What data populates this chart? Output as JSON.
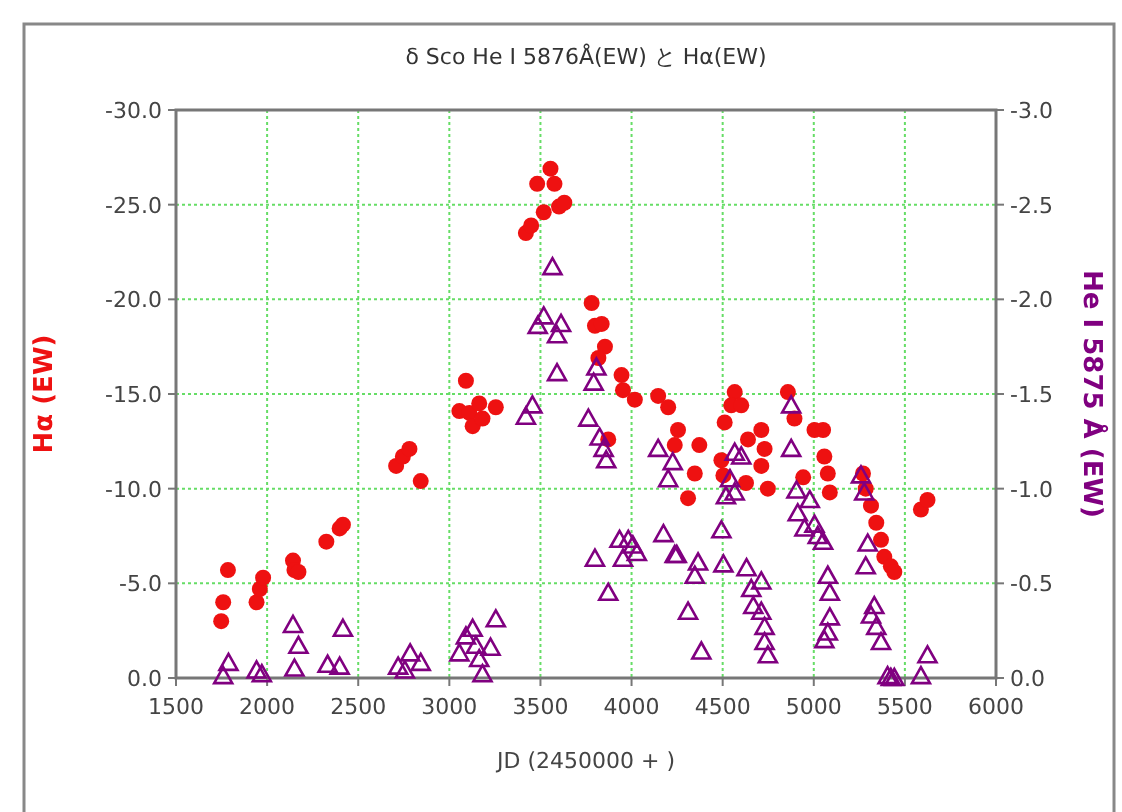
{
  "chart_data": {
    "type": "scatter",
    "title": "δ Sco  He I 5876Å(EW) と Hα(EW)",
    "xlabel": "JD (2450000 + )",
    "ylabel": "Hα (EW)",
    "y2label": "He I 5875 Å (EW)",
    "xlim": [
      1500,
      6000
    ],
    "xticks": [
      1500,
      2000,
      2500,
      3000,
      3500,
      4000,
      4500,
      5000,
      5500,
      6000
    ],
    "ylim": [
      0,
      -30
    ],
    "yticks": [
      {
        "value": 0,
        "label": "0.0"
      },
      {
        "value": -5,
        "label": "-5.0"
      },
      {
        "value": -10,
        "label": "-10.0"
      },
      {
        "value": -15,
        "label": "-15.0"
      },
      {
        "value": -20,
        "label": "-20.0"
      },
      {
        "value": -25,
        "label": "-25.0"
      },
      {
        "value": -30,
        "label": "-30.0"
      }
    ],
    "y2lim": [
      0,
      -3
    ],
    "y2ticks": [
      {
        "value": 0,
        "label": "0.0"
      },
      {
        "value": -0.5,
        "label": "-0.5"
      },
      {
        "value": -1,
        "label": "-1.0"
      },
      {
        "value": -1.5,
        "label": "-1.5"
      },
      {
        "value": -2,
        "label": "-2.0"
      },
      {
        "value": -2.5,
        "label": "-2.5"
      },
      {
        "value": -3,
        "label": "-3.0"
      }
    ],
    "grid": true,
    "line_style": "dotted",
    "series": [
      {
        "color": "#ee1111",
        "marker": "circle",
        "x": [
          1748,
          1759,
          1785,
          1942,
          1960,
          1978,
          2142,
          2150,
          2172,
          2325,
          2398,
          2416,
          2708,
          2745,
          2781,
          2843,
          3091,
          3055,
          3110,
          3164,
          3128,
          3182,
          3255,
          3420,
          3449,
          3482,
          3518,
          3555,
          3577,
          3602,
          3631,
          3781,
          3799,
          3836,
          3854,
          3818,
          3872,
          3945,
          3953,
          4018,
          4146,
          4201,
          4255,
          4237,
          4372,
          4347,
          4310,
          4493,
          4504,
          4566,
          4547,
          4511,
          4602,
          4639,
          4628,
          4712,
          4730,
          4712,
          4748,
          4858,
          4894,
          4942,
          5004,
          5051,
          5058,
          5077,
          5088,
          5270,
          5285,
          5314,
          5343,
          5369,
          5387,
          5423,
          5442,
          5588,
          5624
        ],
        "values": [
          -3.0,
          -4.0,
          -5.7,
          -4.0,
          -4.7,
          -5.3,
          -6.2,
          -5.7,
          -5.6,
          -7.2,
          -7.9,
          -8.1,
          -11.2,
          -11.7,
          -12.1,
          -10.4,
          -15.7,
          -14.1,
          -14.0,
          -14.5,
          -13.3,
          -13.7,
          -14.3,
          -23.5,
          -23.9,
          -26.1,
          -24.6,
          -26.9,
          -26.1,
          -24.9,
          -25.1,
          -19.8,
          -18.6,
          -18.7,
          -17.5,
          -16.9,
          -12.6,
          -16.0,
          -15.2,
          -14.7,
          -14.9,
          -14.3,
          -13.1,
          -12.3,
          -12.3,
          -10.8,
          -9.5,
          -11.5,
          -10.7,
          -15.1,
          -14.4,
          -13.5,
          -14.4,
          -12.6,
          -10.3,
          -13.1,
          -12.1,
          -11.2,
          -10.0,
          -15.1,
          -13.7,
          -10.6,
          -13.1,
          -13.1,
          -11.7,
          -10.8,
          -9.8,
          -10.8,
          -10.0,
          -9.1,
          -8.2,
          -7.3,
          -6.4,
          -5.9,
          -5.6,
          -8.9,
          -9.4
        ]
      },
      {
        "color": "#800080",
        "marker": "triangle",
        "axis": "y2",
        "x": [
          1759,
          1788,
          1942,
          1971,
          2142,
          2172,
          2150,
          2332,
          2398,
          2416,
          2719,
          2756,
          2785,
          2843,
          3055,
          3091,
          3128,
          3146,
          3164,
          3182,
          3226,
          3255,
          3420,
          3456,
          3485,
          3518,
          3566,
          3591,
          3613,
          3591,
          3763,
          3792,
          3807,
          3825,
          3847,
          3861,
          3799,
          3872,
          3934,
          3953,
          3982,
          4007,
          4029,
          4146,
          4175,
          4201,
          4226,
          4237,
          4248,
          4310,
          4347,
          4365,
          4383,
          4493,
          4504,
          4518,
          4540,
          4566,
          4602,
          4566,
          4631,
          4657,
          4668,
          4712,
          4712,
          4730,
          4730,
          4748,
          4876,
          4876,
          4905,
          4912,
          4949,
          4978,
          5004,
          5022,
          5051,
          5077,
          5088,
          5088,
          5077,
          5058,
          5259,
          5277,
          5285,
          5296,
          5314,
          5332,
          5343,
          5369,
          5405,
          5423,
          5442,
          5588,
          5624
        ],
        "values": [
          -0.01,
          -0.08,
          -0.04,
          -0.02,
          -0.28,
          -0.17,
          -0.05,
          -0.07,
          -0.06,
          -0.26,
          -0.06,
          -0.04,
          -0.13,
          -0.08,
          -0.13,
          -0.22,
          -0.26,
          -0.17,
          -0.1,
          -0.02,
          -0.16,
          -0.31,
          -1.38,
          -1.44,
          -1.86,
          -1.91,
          -2.17,
          -1.81,
          -1.87,
          -1.61,
          -1.37,
          -1.56,
          -1.64,
          -1.27,
          -1.21,
          -1.15,
          -0.63,
          -0.45,
          -0.73,
          -0.63,
          -0.73,
          -0.7,
          -0.66,
          -1.21,
          -0.76,
          -1.05,
          -1.14,
          -0.65,
          -0.65,
          -0.35,
          -0.54,
          -0.61,
          -0.14,
          -0.78,
          -0.6,
          -0.96,
          -1.05,
          -1.19,
          -1.17,
          -0.98,
          -0.58,
          -0.47,
          -0.38,
          -0.51,
          -0.35,
          -0.27,
          -0.19,
          -0.12,
          -1.44,
          -1.21,
          -0.99,
          -0.87,
          -0.79,
          -0.94,
          -0.81,
          -0.75,
          -0.72,
          -0.54,
          -0.45,
          -0.32,
          -0.24,
          -0.2,
          -1.07,
          -0.98,
          -0.59,
          -0.71,
          -0.33,
          -0.38,
          -0.27,
          -0.19,
          -0.01,
          0,
          0,
          -0.01,
          -0.12
        ]
      }
    ]
  }
}
